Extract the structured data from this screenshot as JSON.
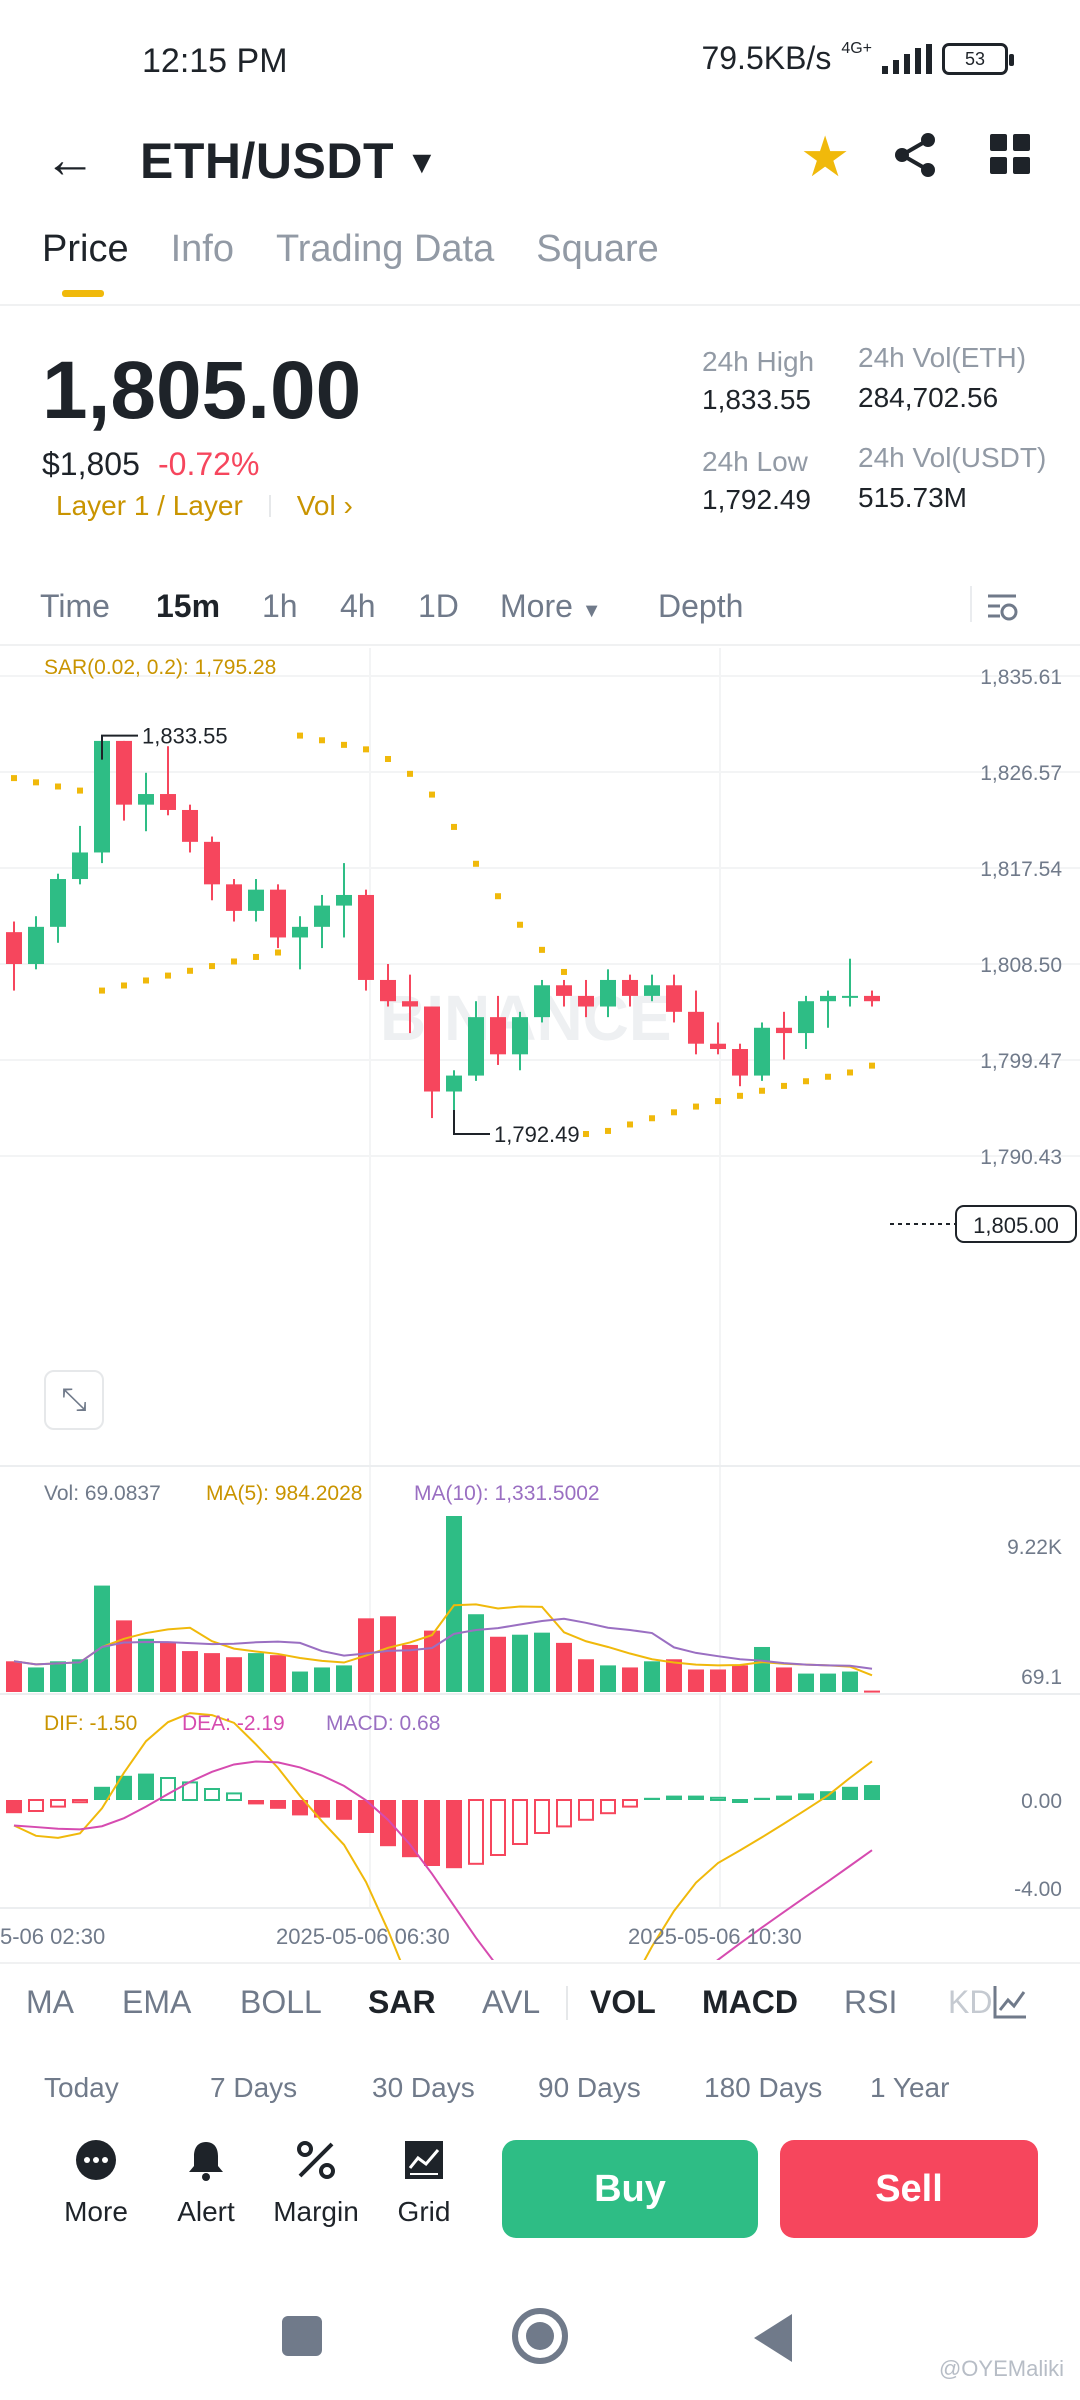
{
  "status_bar": {
    "time": "12:15 PM",
    "speed": "79.5KB/s",
    "network": "4G+",
    "battery": "53"
  },
  "header": {
    "pair": "ETH/USDT"
  },
  "tabs": [
    {
      "label": "Price",
      "active": true
    },
    {
      "label": "Info",
      "active": false
    },
    {
      "label": "Trading Data",
      "active": false
    },
    {
      "label": "Square",
      "active": false
    }
  ],
  "price": {
    "last": "1,805.00",
    "usd": "$1,805",
    "change": "-0.72%",
    "tag": "Layer 1 / Layer",
    "vol_link": "Vol",
    "high_label": "24h High",
    "high": "1,833.55",
    "low_label": "24h Low",
    "low": "1,792.49",
    "vol_eth_label": "24h Vol(ETH)",
    "vol_eth": "284,702.56",
    "vol_usdt_label": "24h Vol(USDT)",
    "vol_usdt": "515.73M"
  },
  "intervals": {
    "time": "Time",
    "m15": "15m",
    "h1": "1h",
    "h4": "4h",
    "d1": "1D",
    "more": "More",
    "depth": "Depth"
  },
  "chart_labels": {
    "sar": "SAR(0.02, 0.2): 1,795.28",
    "watermark": "BINANCE",
    "price_ticks": [
      "1,835.61",
      "1,826.57",
      "1,817.54",
      "1,808.50",
      "1,799.47",
      "1,790.43"
    ],
    "current_price": "1,805.00",
    "high_mark": "1,833.55",
    "low_mark": "1,792.49",
    "vol_text": "Vol: 69.0837",
    "ma5_text": "MA(5): 984.2028",
    "ma10_text": "MA(10): 1,331.5002",
    "vol_ticks": [
      "9.22K",
      "69.1"
    ],
    "dif_text": "DIF: -1.50",
    "dea_text": "DEA: -2.19",
    "macd_text": "MACD: 0.68",
    "macd_ticks": [
      "0.00",
      "-4.00"
    ],
    "time_ticks": [
      "5-06 02:30",
      "2025-05-06 06:30",
      "2025-05-06 10:30"
    ]
  },
  "colors": {
    "up": "#2ebd85",
    "down": "#f6465d",
    "sar": "#f0b90b",
    "ma5": "#f0b90b",
    "ma10": "#9a6fc2",
    "dea": "#d64bb0",
    "accent": "#f0b90b"
  },
  "chart_data": {
    "type": "candlestick",
    "interval": "15m",
    "ylim": [
      1790.43,
      1835.61
    ],
    "candles": [
      {
        "o": 1811.5,
        "h": 1812.5,
        "l": 1806.0,
        "c": 1808.5
      },
      {
        "o": 1808.5,
        "h": 1813.0,
        "l": 1808.0,
        "c": 1812.0
      },
      {
        "o": 1812.0,
        "h": 1817.0,
        "l": 1810.5,
        "c": 1816.5
      },
      {
        "o": 1816.5,
        "h": 1821.5,
        "l": 1816.0,
        "c": 1819.0
      },
      {
        "o": 1819.0,
        "h": 1830.0,
        "l": 1818.0,
        "c": 1829.5
      },
      {
        "o": 1829.5,
        "h": 1829.5,
        "l": 1822.0,
        "c": 1823.5
      },
      {
        "o": 1823.5,
        "h": 1826.5,
        "l": 1821.0,
        "c": 1824.5
      },
      {
        "o": 1824.5,
        "h": 1829.0,
        "l": 1822.5,
        "c": 1823.0
      },
      {
        "o": 1823.0,
        "h": 1823.5,
        "l": 1819.0,
        "c": 1820.0
      },
      {
        "o": 1820.0,
        "h": 1820.5,
        "l": 1814.5,
        "c": 1816.0
      },
      {
        "o": 1816.0,
        "h": 1816.5,
        "l": 1812.5,
        "c": 1813.5
      },
      {
        "o": 1813.5,
        "h": 1816.5,
        "l": 1812.5,
        "c": 1815.5
      },
      {
        "o": 1815.5,
        "h": 1816.0,
        "l": 1810.0,
        "c": 1811.0
      },
      {
        "o": 1811.0,
        "h": 1813.0,
        "l": 1808.0,
        "c": 1812.0
      },
      {
        "o": 1812.0,
        "h": 1815.0,
        "l": 1810.0,
        "c": 1814.0
      },
      {
        "o": 1814.0,
        "h": 1818.0,
        "l": 1811.0,
        "c": 1815.0
      },
      {
        "o": 1815.0,
        "h": 1815.5,
        "l": 1806.0,
        "c": 1807.0
      },
      {
        "o": 1807.0,
        "h": 1808.5,
        "l": 1804.5,
        "c": 1805.0
      },
      {
        "o": 1805.0,
        "h": 1807.5,
        "l": 1802.0,
        "c": 1804.5
      },
      {
        "o": 1804.5,
        "h": 1804.5,
        "l": 1794.0,
        "c": 1796.5
      },
      {
        "o": 1796.5,
        "h": 1798.5,
        "l": 1792.5,
        "c": 1798.0
      },
      {
        "o": 1798.0,
        "h": 1805.0,
        "l": 1797.5,
        "c": 1803.5
      },
      {
        "o": 1803.5,
        "h": 1805.5,
        "l": 1799.0,
        "c": 1800.0
      },
      {
        "o": 1800.0,
        "h": 1804.0,
        "l": 1798.5,
        "c": 1803.5
      },
      {
        "o": 1803.5,
        "h": 1807.0,
        "l": 1803.0,
        "c": 1806.5
      },
      {
        "o": 1806.5,
        "h": 1807.0,
        "l": 1804.5,
        "c": 1805.5
      },
      {
        "o": 1805.5,
        "h": 1807.0,
        "l": 1803.5,
        "c": 1804.5
      },
      {
        "o": 1804.5,
        "h": 1808.0,
        "l": 1803.5,
        "c": 1807.0
      },
      {
        "o": 1807.0,
        "h": 1807.5,
        "l": 1804.5,
        "c": 1805.5
      },
      {
        "o": 1805.5,
        "h": 1807.5,
        "l": 1805.0,
        "c": 1806.5
      },
      {
        "o": 1806.5,
        "h": 1807.5,
        "l": 1803.0,
        "c": 1804.0
      },
      {
        "o": 1804.0,
        "h": 1806.0,
        "l": 1800.0,
        "c": 1801.0
      },
      {
        "o": 1801.0,
        "h": 1803.0,
        "l": 1800.0,
        "c": 1800.5
      },
      {
        "o": 1800.5,
        "h": 1801.0,
        "l": 1797.0,
        "c": 1798.0
      },
      {
        "o": 1798.0,
        "h": 1803.0,
        "l": 1797.5,
        "c": 1802.5
      },
      {
        "o": 1802.5,
        "h": 1804.0,
        "l": 1799.5,
        "c": 1802.0
      },
      {
        "o": 1802.0,
        "h": 1805.5,
        "l": 1800.5,
        "c": 1805.0
      },
      {
        "o": 1805.0,
        "h": 1806.0,
        "l": 1802.5,
        "c": 1805.5
      },
      {
        "o": 1805.5,
        "h": 1809.0,
        "l": 1804.5,
        "c": 1805.5
      },
      {
        "o": 1805.5,
        "h": 1806.0,
        "l": 1804.5,
        "c": 1805.0
      }
    ],
    "volume": [
      1500,
      1200,
      1500,
      1600,
      5200,
      3500,
      2600,
      2400,
      2000,
      1900,
      1700,
      1900,
      1800,
      1000,
      1200,
      1300,
      3600,
      3700,
      2300,
      3000,
      8600,
      3800,
      2700,
      2800,
      2900,
      2400,
      1600,
      1300,
      1200,
      1500,
      1600,
      1100,
      1100,
      1300,
      2200,
      1200,
      900,
      900,
      1000,
      69.0837
    ],
    "macd_hist": [
      -0.6,
      -0.5,
      -0.3,
      -0.1,
      0.6,
      1.1,
      1.2,
      1.0,
      0.8,
      0.5,
      0.3,
      -0.2,
      -0.4,
      -0.7,
      -0.8,
      -0.9,
      -1.5,
      -2.1,
      -2.6,
      -3.0,
      -3.1,
      -2.9,
      -2.5,
      -2.0,
      -1.5,
      -1.2,
      -0.9,
      -0.6,
      -0.3,
      0.1,
      0.2,
      0.2,
      0.1,
      0.0,
      0.1,
      0.2,
      0.3,
      0.4,
      0.6,
      0.68
    ]
  },
  "indicators": {
    "ma": "MA",
    "ema": "EMA",
    "boll": "BOLL",
    "sar": "SAR",
    "avl": "AVL",
    "vol": "VOL",
    "macd": "MACD",
    "rsi": "RSI",
    "kd": "KD"
  },
  "ranges": [
    "Today",
    "7 Days",
    "30 Days",
    "90 Days",
    "180 Days",
    "1 Year"
  ],
  "actions": {
    "more": "More",
    "alert": "Alert",
    "margin": "Margin",
    "grid": "Grid",
    "buy": "Buy",
    "sell": "Sell"
  },
  "footer": {
    "credit": "@OYEMaliki"
  }
}
